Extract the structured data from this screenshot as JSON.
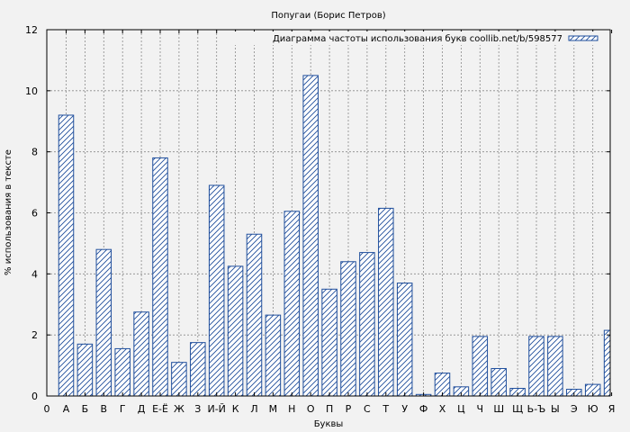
{
  "chart_data": {
    "type": "bar",
    "title": "Попугаи (Борис Петров)",
    "xlabel": "Буквы",
    "ylabel": "% использования в тексте",
    "ylim": [
      0,
      12
    ],
    "yticks": [
      0,
      2,
      4,
      6,
      8,
      10,
      12
    ],
    "grid": true,
    "legend_position": "top-right",
    "bar_color": "#1f4e9c",
    "hatch": "diagonal",
    "series": [
      {
        "name": "Диаграмма частоты использования букв coollib.net/b/598577"
      }
    ],
    "x_tick_start": "0",
    "categories": [
      "А",
      "Б",
      "В",
      "Г",
      "Д",
      "Е-Ё",
      "Ж",
      "З",
      "И-Й",
      "К",
      "Л",
      "М",
      "Н",
      "О",
      "П",
      "Р",
      "С",
      "Т",
      "У",
      "Ф",
      "Х",
      "Ц",
      "Ч",
      "Ш",
      "Щ",
      "Ь-Ъ",
      "Ы",
      "Э",
      "Ю",
      "Я"
    ],
    "values": [
      9.2,
      1.7,
      4.8,
      1.55,
      2.75,
      7.8,
      1.1,
      1.75,
      6.9,
      4.25,
      5.3,
      2.65,
      6.05,
      10.5,
      3.5,
      4.4,
      4.7,
      6.15,
      3.7,
      0.05,
      0.75,
      0.3,
      1.95,
      0.9,
      0.25,
      1.95,
      1.95,
      0.22,
      0.38,
      2.15
    ]
  }
}
